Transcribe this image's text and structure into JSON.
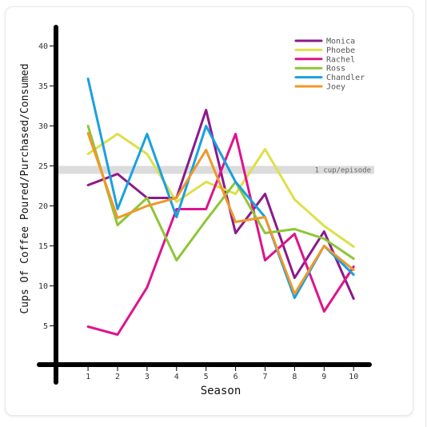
{
  "chart_data": {
    "type": "line",
    "xlabel": "Season",
    "ylabel": "Cups Of Coffee Poured/Purchased/Consumed",
    "x": [
      1,
      2,
      3,
      4,
      5,
      6,
      7,
      8,
      9,
      10
    ],
    "xlim": [
      0,
      10.6
    ],
    "ylim": [
      -0.2,
      43
    ],
    "yticks": [
      5,
      10,
      15,
      20,
      25,
      30,
      35,
      40
    ],
    "legend_position": "top-right",
    "grid": false,
    "reference_band": {
      "label": "1 cup/episode",
      "y": [
        24,
        25
      ],
      "color": "#dcdcdc"
    },
    "series": [
      {
        "name": "Monica",
        "color": "#8b1a8b",
        "values": [
          22.6,
          24.0,
          21.0,
          21.0,
          32.0,
          16.6,
          21.5,
          11.0,
          16.8,
          8.4
        ]
      },
      {
        "name": "Phoebe",
        "color": "#dde04a",
        "values": [
          26.5,
          29.0,
          26.5,
          20.5,
          23.0,
          21.5,
          27.1,
          20.8,
          17.5,
          14.9
        ]
      },
      {
        "name": "Rachel",
        "color": "#dd148c",
        "values": [
          4.9,
          3.9,
          9.8,
          19.6,
          19.6,
          29.0,
          13.2,
          16.5,
          6.8,
          12.4
        ]
      },
      {
        "name": "Ross",
        "color": "#8dc635",
        "values": [
          30.0,
          17.6,
          21.0,
          13.2,
          18.2,
          23.0,
          16.6,
          17.1,
          15.9,
          13.4
        ]
      },
      {
        "name": "Chandler",
        "color": "#19a1de",
        "values": [
          35.9,
          19.6,
          29.0,
          18.6,
          30.0,
          23.0,
          18.6,
          8.5,
          15.0,
          11.4
        ]
      },
      {
        "name": "Joey",
        "color": "#f0982a",
        "values": [
          29.1,
          18.5,
          20.0,
          21.0,
          27.0,
          18.0,
          18.6,
          9.0,
          15.0,
          12.0
        ]
      }
    ]
  }
}
